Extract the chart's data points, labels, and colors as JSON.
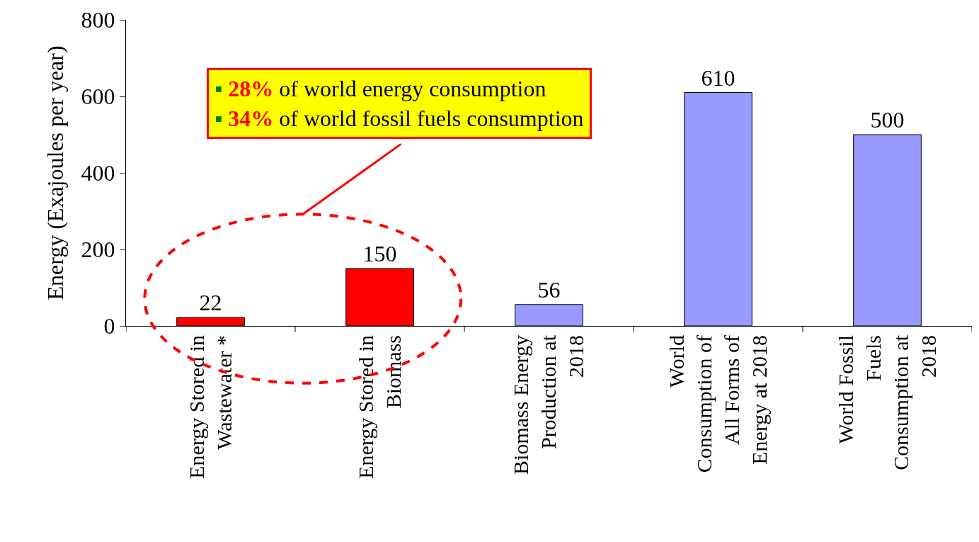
{
  "chart_data": {
    "type": "bar",
    "ylabel": "Energy (Exajoules per year)",
    "categories": [
      "Energy Stored in\nWastewater *",
      "Energy Stored in\nBiomass",
      "Biomass Energy\nProduction at\n2018",
      "World\nConsumption of\nAll Forms of\nEnergy at 2018",
      "World Fossil\nFuels\nConsumption at\n2018"
    ],
    "values": [
      22,
      150,
      56,
      610,
      500
    ],
    "colors": [
      "#ff0000",
      "#ff0000",
      "#9999ff",
      "#9999ff",
      "#9999ff"
    ],
    "data_labels": true,
    "ylim": [
      0,
      800
    ],
    "yticks": [
      0,
      200,
      400,
      600,
      800
    ],
    "annotations": [
      "▪ 28% of world energy consumption\n▪ 34% of world fossil fuels consumption"
    ]
  }
}
